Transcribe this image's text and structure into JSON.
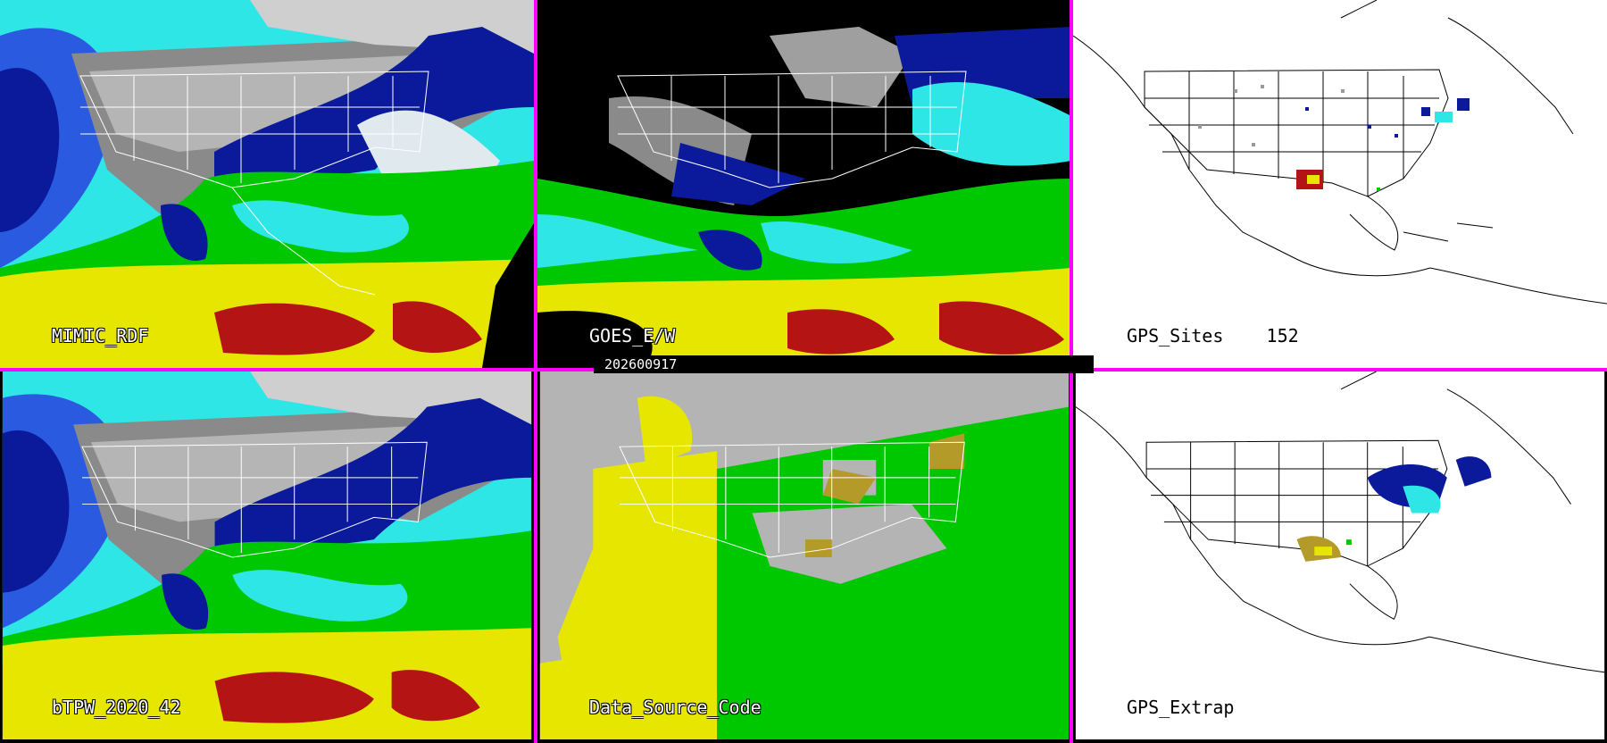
{
  "panels": [
    {
      "id": "mimic",
      "label": "MIMIC_RDF",
      "style": "tpw",
      "bg": "#1a1a1a"
    },
    {
      "id": "goes",
      "label": "GOES_E/W",
      "style": "goes",
      "bg": "#000000"
    },
    {
      "id": "gps-sites",
      "label": "GPS_Sites    152",
      "style": "white",
      "bg": "#ffffff"
    },
    {
      "id": "btpw",
      "label": "bTPW_2020_42",
      "style": "tpw",
      "bg": "#1a1a1a"
    },
    {
      "id": "data-source",
      "label": "Data_Source_Code",
      "style": "source",
      "bg": "#b4b4b4"
    },
    {
      "id": "gps-extrap",
      "label": "GPS_Extrap",
      "style": "white",
      "bg": "#ffffff"
    }
  ],
  "timestamp": "202600917",
  "colors": {
    "divider": "#ff00ff",
    "palette": [
      "#ffffff",
      "#9a9a9a",
      "#0a1a9a",
      "#2a5ae0",
      "#2ee6e6",
      "#00c800",
      "#e6e600",
      "#b41414"
    ]
  }
}
